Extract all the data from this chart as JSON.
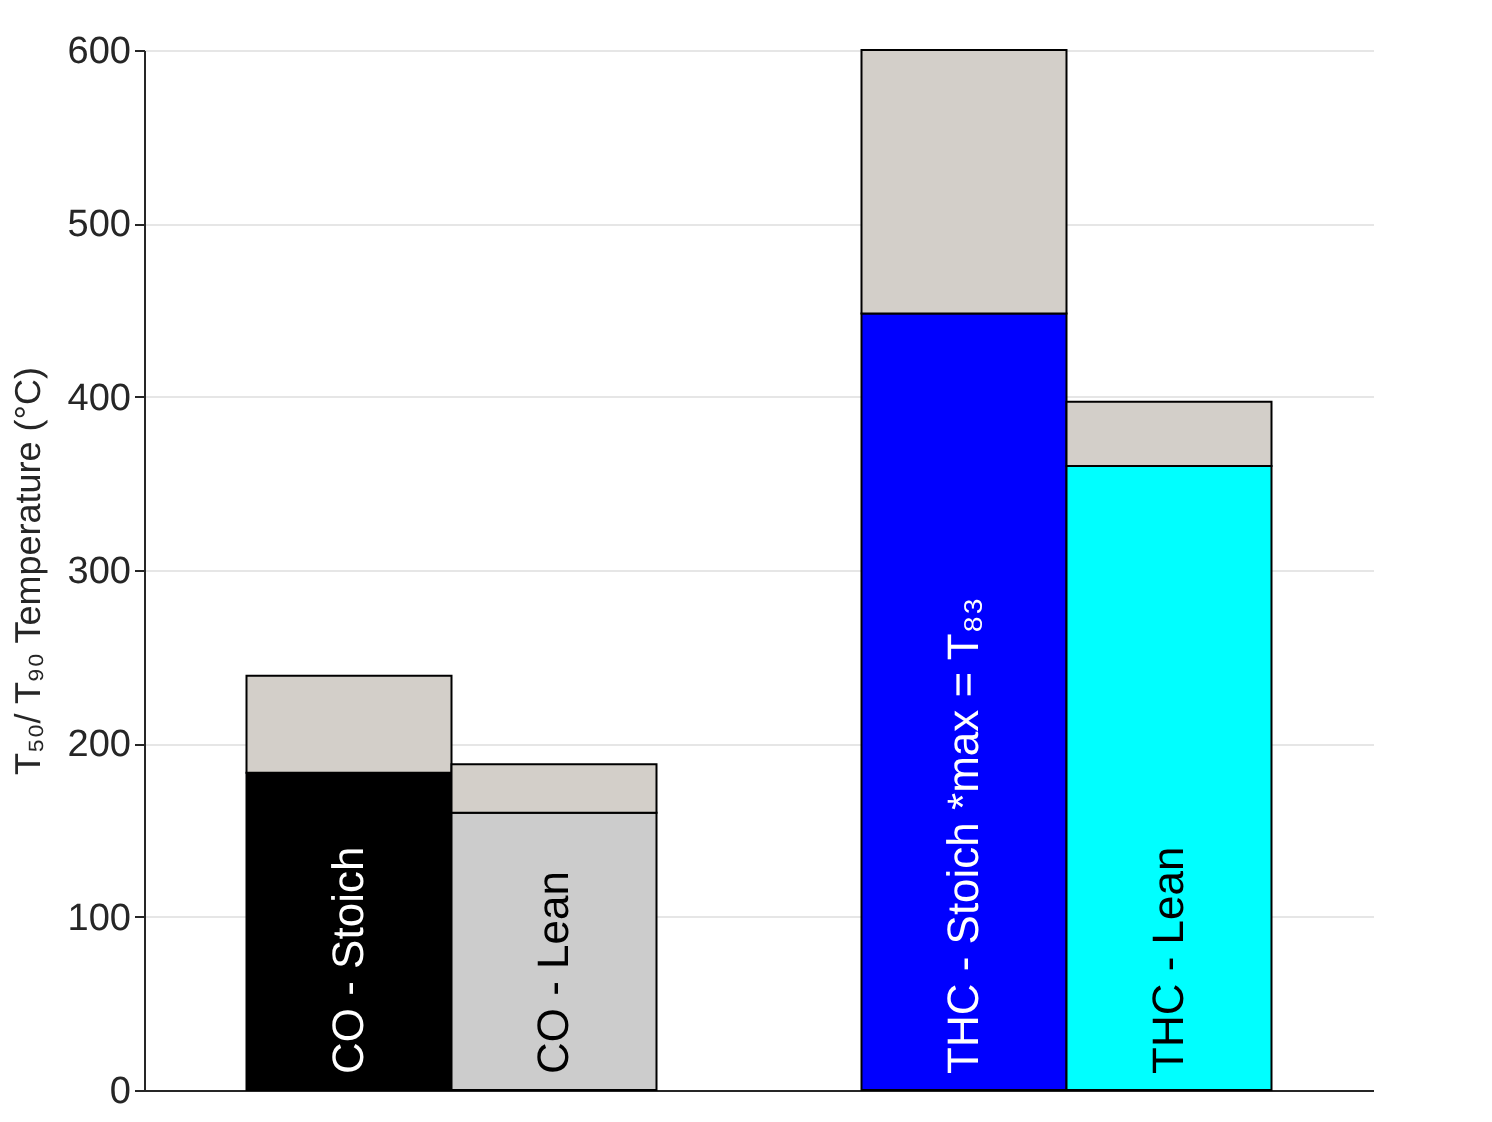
{
  "chart_data": {
    "type": "bar",
    "stacked": true,
    "ylabel": "T₅₀/ T₉₀ Temperature (°C)",
    "categories": [
      "CO - Stoich",
      "CO - Lean",
      null,
      "THC - Stoich *max = T₈₃",
      "THC - Lean"
    ],
    "series": [
      {
        "colors": [
          "#000000",
          "#cccccc",
          null,
          "#0000ff",
          "#00ffff"
        ],
        "values": [
          183,
          160,
          null,
          448,
          360
        ]
      },
      {
        "color": "#d3cfc9",
        "values": [
          56,
          28,
          null,
          152,
          37
        ]
      }
    ],
    "ylim": [
      0,
      600
    ],
    "yticks": [
      0,
      100,
      200,
      300,
      400,
      500,
      600
    ],
    "grid": "y",
    "tick_labels": "y"
  }
}
